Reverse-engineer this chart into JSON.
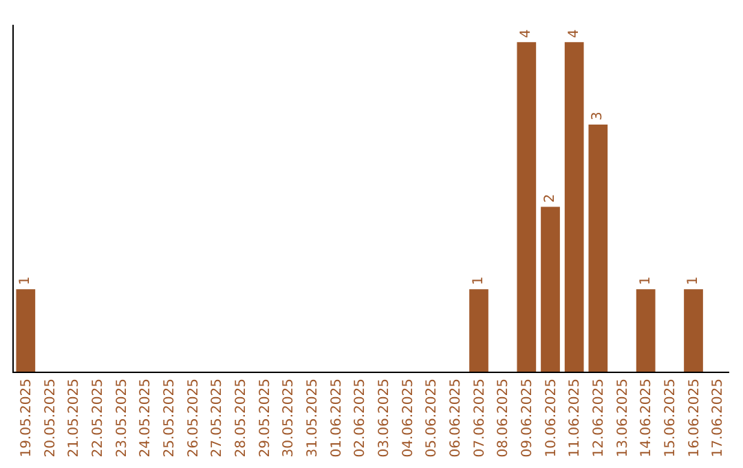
{
  "chart_data": {
    "type": "bar",
    "categories": [
      "19.05.2025",
      "20.05.2025",
      "21.05.2025",
      "22.05.2025",
      "23.05.2025",
      "24.05.2025",
      "25.05.2025",
      "26.05.2025",
      "27.05.2025",
      "28.05.2025",
      "29.05.2025",
      "30.05.2025",
      "31.05.2025",
      "01.06.2025",
      "02.06.2025",
      "03.06.2025",
      "04.06.2025",
      "05.06.2025",
      "06.06.2025",
      "07.06.2025",
      "08.06.2025",
      "09.06.2025",
      "10.06.2025",
      "11.06.2025",
      "12.06.2025",
      "13.06.2025",
      "14.06.2025",
      "15.06.2025",
      "16.06.2025",
      "17.06.2025"
    ],
    "values": [
      1,
      0,
      0,
      0,
      0,
      0,
      0,
      0,
      0,
      0,
      0,
      0,
      0,
      0,
      0,
      0,
      0,
      0,
      0,
      1,
      0,
      4,
      2,
      4,
      3,
      0,
      1,
      0,
      1,
      0
    ],
    "value_labels": [
      "1",
      null,
      null,
      null,
      null,
      null,
      null,
      null,
      null,
      null,
      null,
      null,
      null,
      null,
      null,
      null,
      null,
      null,
      null,
      "1",
      null,
      "4",
      "2",
      "4",
      "3",
      null,
      "1",
      null,
      "1",
      null
    ],
    "color": "#a0582a",
    "grid": false,
    "legend": false,
    "tick_labels": "x"
  }
}
